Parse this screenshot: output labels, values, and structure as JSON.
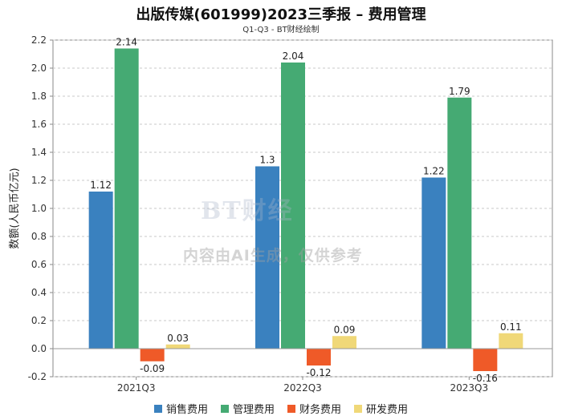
{
  "chart_data": {
    "type": "bar",
    "title": "出版传媒(601999)2023三季报 – 费用管理",
    "subtitle": "Q1-Q3 - BT财经绘制",
    "ylabel": "数额(人民币亿元)",
    "xlabel": "",
    "categories": [
      "2021Q3",
      "2022Q3",
      "2023Q3"
    ],
    "ylim": [
      -0.2,
      2.2
    ],
    "yticks": [
      "-0.2",
      "0.0",
      "0.2",
      "0.4",
      "0.6",
      "0.8",
      "1.0",
      "1.2",
      "1.4",
      "1.6",
      "1.8",
      "2.0",
      "2.2"
    ],
    "grid": true,
    "legend_position": "bottom",
    "series": [
      {
        "name": "销售费用",
        "color": "#3a81bf",
        "values": [
          1.12,
          1.3,
          1.22
        ],
        "labels": [
          "1.12",
          "1.3",
          "1.22"
        ]
      },
      {
        "name": "管理费用",
        "color": "#45aa73",
        "values": [
          2.14,
          2.04,
          1.79
        ],
        "labels": [
          "2.14",
          "2.04",
          "1.79"
        ]
      },
      {
        "name": "财务费用",
        "color": "#ef5a28",
        "values": [
          -0.09,
          -0.12,
          -0.16
        ],
        "labels": [
          "-0.09",
          "-0.12",
          "-0.16"
        ]
      },
      {
        "name": "研发费用",
        "color": "#f0d878",
        "values": [
          0.03,
          0.09,
          0.11
        ],
        "labels": [
          "0.03",
          "0.09",
          "0.11"
        ]
      }
    ]
  },
  "watermark": {
    "brand": "BT财经 BUSINESSTIMES",
    "notice": "内容由AI生成，仅供参考"
  }
}
